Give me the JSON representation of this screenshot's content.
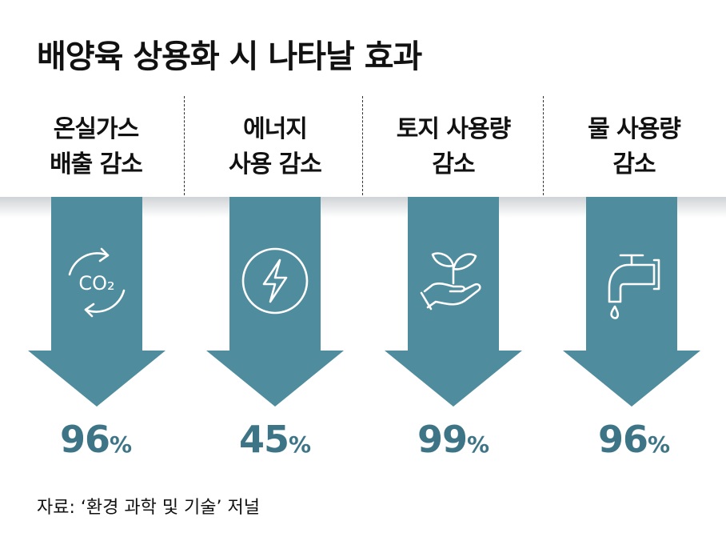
{
  "title": "배양육 상용화 시 나타날 효과",
  "colors": {
    "arrow": "#4f8c9d",
    "percent": "#3d7586",
    "icon": "#ffffff"
  },
  "chart_data": {
    "type": "bar",
    "categories": [
      [
        "온실가스",
        "배출 감소"
      ],
      [
        "에너지",
        "사용 감소"
      ],
      [
        "토지 사용량",
        "감소"
      ],
      [
        "물 사용량",
        "감소"
      ]
    ],
    "icons": [
      "co2-cycle-icon",
      "lightning-icon",
      "plant-hand-icon",
      "faucet-icon"
    ],
    "values": [
      96,
      45,
      99,
      96
    ],
    "unit": "%",
    "co2_label": "CO₂"
  },
  "source": "자료: ‘환경 과학 및 기술’ 저널"
}
